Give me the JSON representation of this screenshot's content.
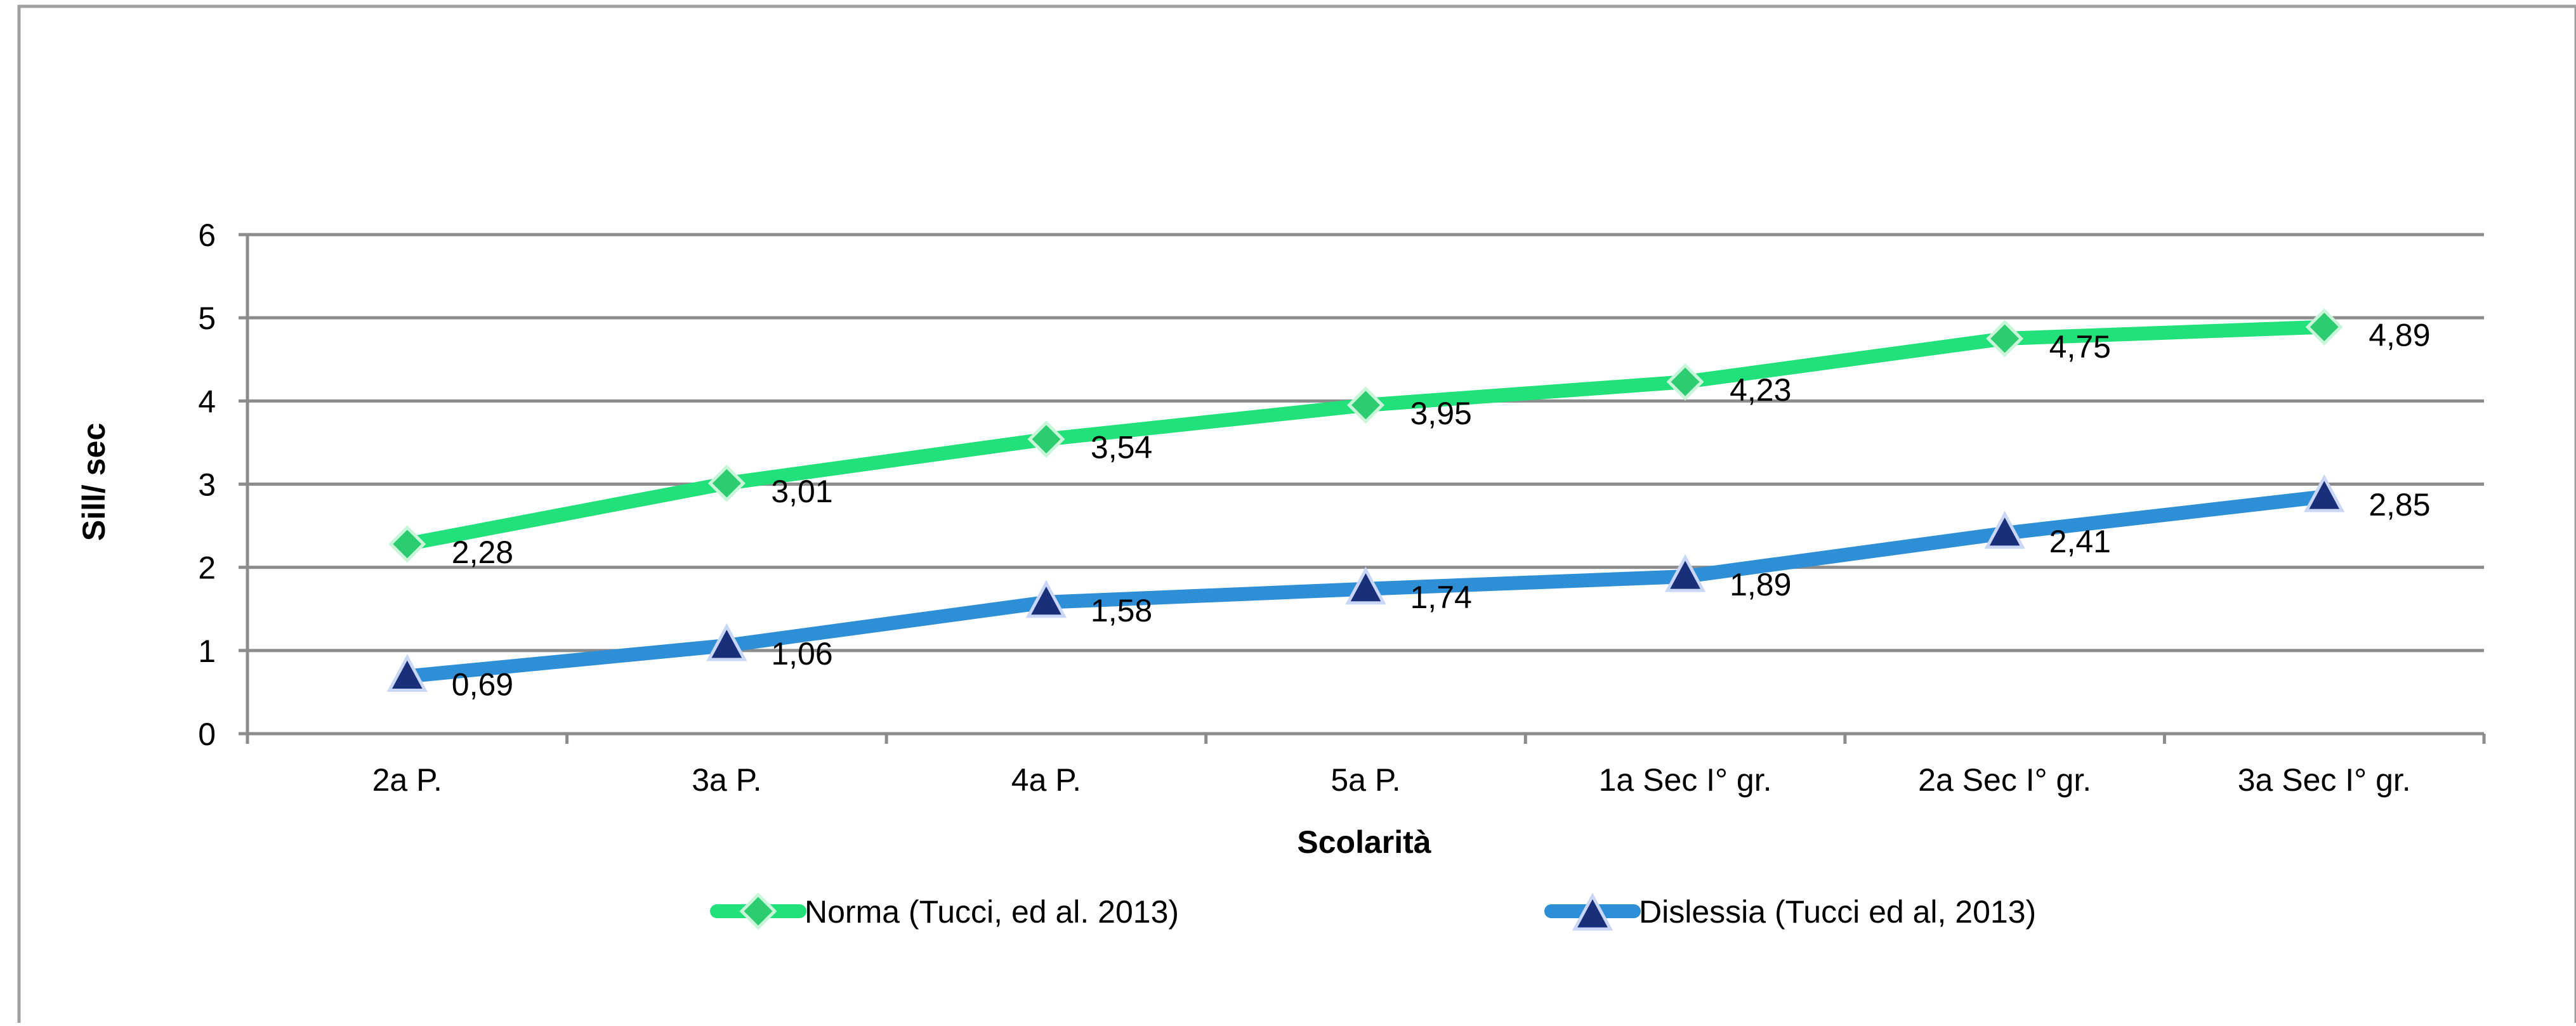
{
  "chart_data": {
    "type": "line",
    "title": "",
    "xlabel": "Scolarità",
    "ylabel": "Sill/ sec",
    "categories": [
      "2a P.",
      "3a P.",
      "4a P.",
      "5a P.",
      "1a Sec I° gr.",
      "2a Sec I° gr.",
      "3a Sec I° gr."
    ],
    "ylim": [
      0,
      6
    ],
    "yticks": [
      "0",
      "1",
      "2",
      "3",
      "4",
      "5",
      "6"
    ],
    "grid": true,
    "legend_position": "bottom",
    "series": [
      {
        "name": "Norma (Tucci, ed al. 2013)",
        "values": [
          2.28,
          3.01,
          3.54,
          3.95,
          4.23,
          4.75,
          4.89
        ],
        "labels": [
          "2,28",
          "3,01",
          "3,54",
          "3,95",
          "4,23",
          "4,75",
          "4,89"
        ],
        "color": "#22e07a",
        "marker": "diamond",
        "marker_color": "#2ecc71"
      },
      {
        "name": "Dislessia (Tucci ed al, 2013)",
        "values": [
          0.69,
          1.06,
          1.58,
          1.74,
          1.89,
          2.41,
          2.85
        ],
        "labels": [
          "0,69",
          "1,06",
          "1,58",
          "1,74",
          "1,89",
          "2,41",
          "2,85"
        ],
        "color": "#2e8fd6",
        "marker": "triangle",
        "marker_color": "#1a2f7a"
      }
    ]
  }
}
